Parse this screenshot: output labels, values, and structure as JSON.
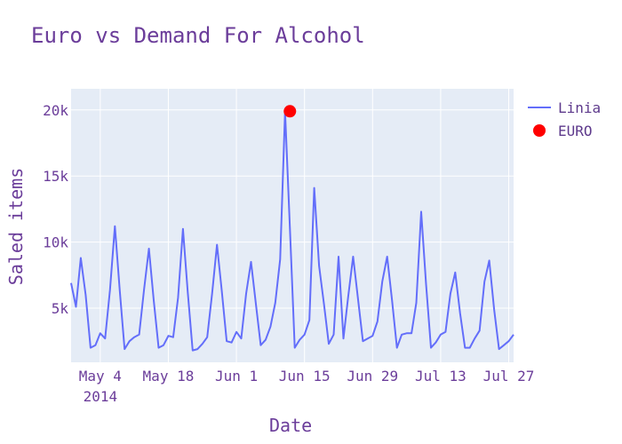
{
  "chart_data": {
    "type": "line",
    "title": "Euro vs Demand For Alcohol",
    "xlabel": "Date",
    "ylabel": "Saled items",
    "x_ticks": [
      "May 4\n2014",
      "May 18",
      "Jun 1",
      "Jun 15",
      "Jun 29",
      "Jul 13",
      "Jul 27"
    ],
    "y_ticks": [
      "5k",
      "10k",
      "15k",
      "20k"
    ],
    "x_range": [
      "2014-04-28",
      "2014-07-28"
    ],
    "ylim": [
      900,
      21600
    ],
    "grid": true,
    "legend_position": "top-right",
    "series": [
      {
        "name": "Linia",
        "color": "#636efa",
        "x": [
          "2014-04-28",
          "2014-04-29",
          "2014-04-30",
          "2014-05-01",
          "2014-05-02",
          "2014-05-03",
          "2014-05-04",
          "2014-05-05",
          "2014-05-06",
          "2014-05-07",
          "2014-05-08",
          "2014-05-09",
          "2014-05-10",
          "2014-05-11",
          "2014-05-12",
          "2014-05-13",
          "2014-05-14",
          "2014-05-15",
          "2014-05-16",
          "2014-05-17",
          "2014-05-18",
          "2014-05-19",
          "2014-05-20",
          "2014-05-21",
          "2014-05-22",
          "2014-05-23",
          "2014-05-24",
          "2014-05-25",
          "2014-05-26",
          "2014-05-27",
          "2014-05-28",
          "2014-05-29",
          "2014-05-30",
          "2014-05-31",
          "2014-06-01",
          "2014-06-02",
          "2014-06-03",
          "2014-06-04",
          "2014-06-05",
          "2014-06-06",
          "2014-06-07",
          "2014-06-08",
          "2014-06-09",
          "2014-06-10",
          "2014-06-11",
          "2014-06-12",
          "2014-06-13",
          "2014-06-14",
          "2014-06-15",
          "2014-06-16",
          "2014-06-17",
          "2014-06-18",
          "2014-06-19",
          "2014-06-20",
          "2014-06-21",
          "2014-06-22",
          "2014-06-23",
          "2014-06-24",
          "2014-06-25",
          "2014-06-26",
          "2014-06-27",
          "2014-06-28",
          "2014-06-29",
          "2014-06-30",
          "2014-07-01",
          "2014-07-02",
          "2014-07-03",
          "2014-07-04",
          "2014-07-05",
          "2014-07-06",
          "2014-07-07",
          "2014-07-08",
          "2014-07-09",
          "2014-07-10",
          "2014-07-11",
          "2014-07-12",
          "2014-07-13",
          "2014-07-14",
          "2014-07-15",
          "2014-07-16",
          "2014-07-17",
          "2014-07-18",
          "2014-07-19",
          "2014-07-20",
          "2014-07-21",
          "2014-07-22",
          "2014-07-23",
          "2014-07-24",
          "2014-07-25",
          "2014-07-26",
          "2014-07-27",
          "2014-07-28"
        ],
        "values": [
          6900,
          5100,
          8800,
          6000,
          2000,
          2200,
          3100,
          2700,
          6400,
          11200,
          6400,
          1900,
          2500,
          2800,
          3000,
          6400,
          9500,
          5600,
          2000,
          2200,
          2900,
          2800,
          5800,
          11000,
          6200,
          1800,
          1900,
          2300,
          2800,
          6100,
          9800,
          6300,
          2500,
          2400,
          3200,
          2700,
          6100,
          8500,
          5300,
          2200,
          2600,
          3600,
          5400,
          8700,
          19900,
          11000,
          2000,
          2600,
          3000,
          4100,
          14100,
          8200,
          5300,
          2300,
          3000,
          8900,
          2700,
          5900,
          8900,
          5700,
          2500,
          2700,
          2900,
          4000,
          7000,
          8900,
          5600,
          2000,
          3000,
          3100,
          3100,
          5400,
          12300,
          6800,
          2000,
          2400,
          3000,
          3200,
          6100,
          7700,
          4600,
          2000,
          2000,
          2700,
          3300,
          7000,
          8600,
          4900,
          1900,
          2200,
          2500,
          3000
        ]
      },
      {
        "name": "EURO",
        "color": "#ff0000",
        "x": [
          "2014-06-12"
        ],
        "values": [
          19900
        ]
      }
    ]
  }
}
